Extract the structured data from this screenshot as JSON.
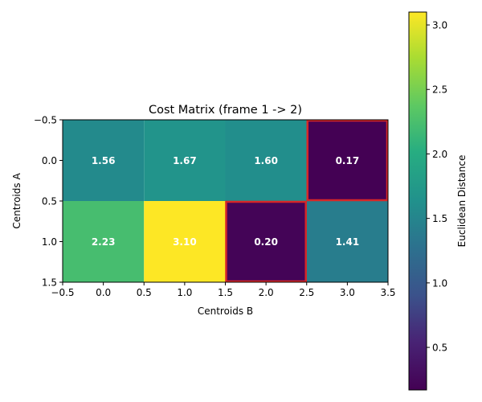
{
  "chart_data": {
    "type": "heatmap",
    "title": "Cost Matrix (frame 1 -> 2)",
    "xlabel": "Centroids B",
    "ylabel": "Centroids A",
    "x_ticks": [
      "−0.5",
      "0.0",
      "0.5",
      "1.0",
      "1.5",
      "2.0",
      "2.5",
      "3.0",
      "3.5"
    ],
    "y_ticks": [
      "−0.5",
      "0.0",
      "0.5",
      "1.0",
      "1.5"
    ],
    "x_tick_values": [
      -0.5,
      0,
      0.5,
      1,
      1.5,
      2,
      2.5,
      3,
      3.5
    ],
    "y_tick_values": [
      -0.5,
      0,
      0.5,
      1,
      1.5
    ],
    "xlim": [
      -0.5,
      3.5
    ],
    "ylim": [
      1.5,
      -0.5
    ],
    "values": [
      [
        1.56,
        1.67,
        1.6,
        0.17
      ],
      [
        2.23,
        3.1,
        0.2,
        1.41
      ]
    ],
    "cell_labels": [
      [
        "1.56",
        "1.67",
        "1.60",
        "0.17"
      ],
      [
        "2.23",
        "3.10",
        "0.20",
        "1.41"
      ]
    ],
    "highlighted_cells": [
      [
        0,
        3
      ],
      [
        1,
        2
      ]
    ],
    "highlight_color": "#d62728",
    "colormap": "viridis",
    "colorbar": {
      "label": "Euclidean Distance",
      "range": [
        0.17,
        3.1
      ],
      "ticks": [
        "0.5",
        "1.0",
        "1.5",
        "2.0",
        "2.5",
        "3.0"
      ],
      "tick_values": [
        0.5,
        1.0,
        1.5,
        2.0,
        2.5,
        3.0
      ]
    }
  }
}
